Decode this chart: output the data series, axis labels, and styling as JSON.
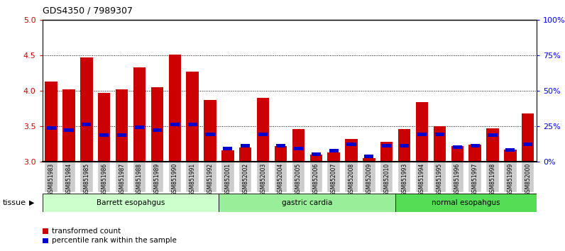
{
  "title": "GDS4350 / 7989307",
  "samples": [
    "GSM851983",
    "GSM851984",
    "GSM851985",
    "GSM851986",
    "GSM851987",
    "GSM851988",
    "GSM851989",
    "GSM851990",
    "GSM851991",
    "GSM851992",
    "GSM852001",
    "GSM852002",
    "GSM852003",
    "GSM852004",
    "GSM852005",
    "GSM852006",
    "GSM852007",
    "GSM852008",
    "GSM852009",
    "GSM852010",
    "GSM851993",
    "GSM851994",
    "GSM851995",
    "GSM851996",
    "GSM851997",
    "GSM851998",
    "GSM851999",
    "GSM852000"
  ],
  "red_values": [
    4.13,
    4.02,
    4.47,
    3.97,
    4.02,
    4.33,
    4.05,
    4.51,
    4.27,
    3.87,
    3.16,
    3.2,
    3.9,
    3.22,
    3.46,
    3.1,
    3.13,
    3.32,
    3.05,
    3.28,
    3.46,
    3.84,
    3.5,
    3.22,
    3.24,
    3.47,
    3.17,
    3.68
  ],
  "blue_values": [
    3.45,
    3.42,
    3.5,
    3.35,
    3.35,
    3.46,
    3.42,
    3.5,
    3.5,
    3.36,
    3.16,
    3.2,
    3.36,
    3.2,
    3.16,
    3.08,
    3.13,
    3.22,
    3.05,
    3.2,
    3.2,
    3.36,
    3.36,
    3.18,
    3.2,
    3.35,
    3.14,
    3.22
  ],
  "groups": [
    {
      "label": "Barrett esopahgus",
      "start": 0,
      "end": 10,
      "color": "#ccffcc"
    },
    {
      "label": "gastric cardia",
      "start": 10,
      "end": 20,
      "color": "#99ee99"
    },
    {
      "label": "normal esopahgus",
      "start": 20,
      "end": 28,
      "color": "#55dd55"
    }
  ],
  "ylim": [
    3.0,
    5.0
  ],
  "yticks": [
    3.0,
    3.5,
    4.0,
    4.5,
    5.0
  ],
  "yticks_right_labels": [
    "0%",
    "25%",
    "50%",
    "75%",
    "100%"
  ],
  "red_color": "#cc0000",
  "blue_color": "#0000cc",
  "xtick_bg_color": "#cccccc",
  "bar_width": 0.7,
  "legend_red": "transformed count",
  "legend_blue": "percentile rank within the sample",
  "tissue_label": "tissue"
}
